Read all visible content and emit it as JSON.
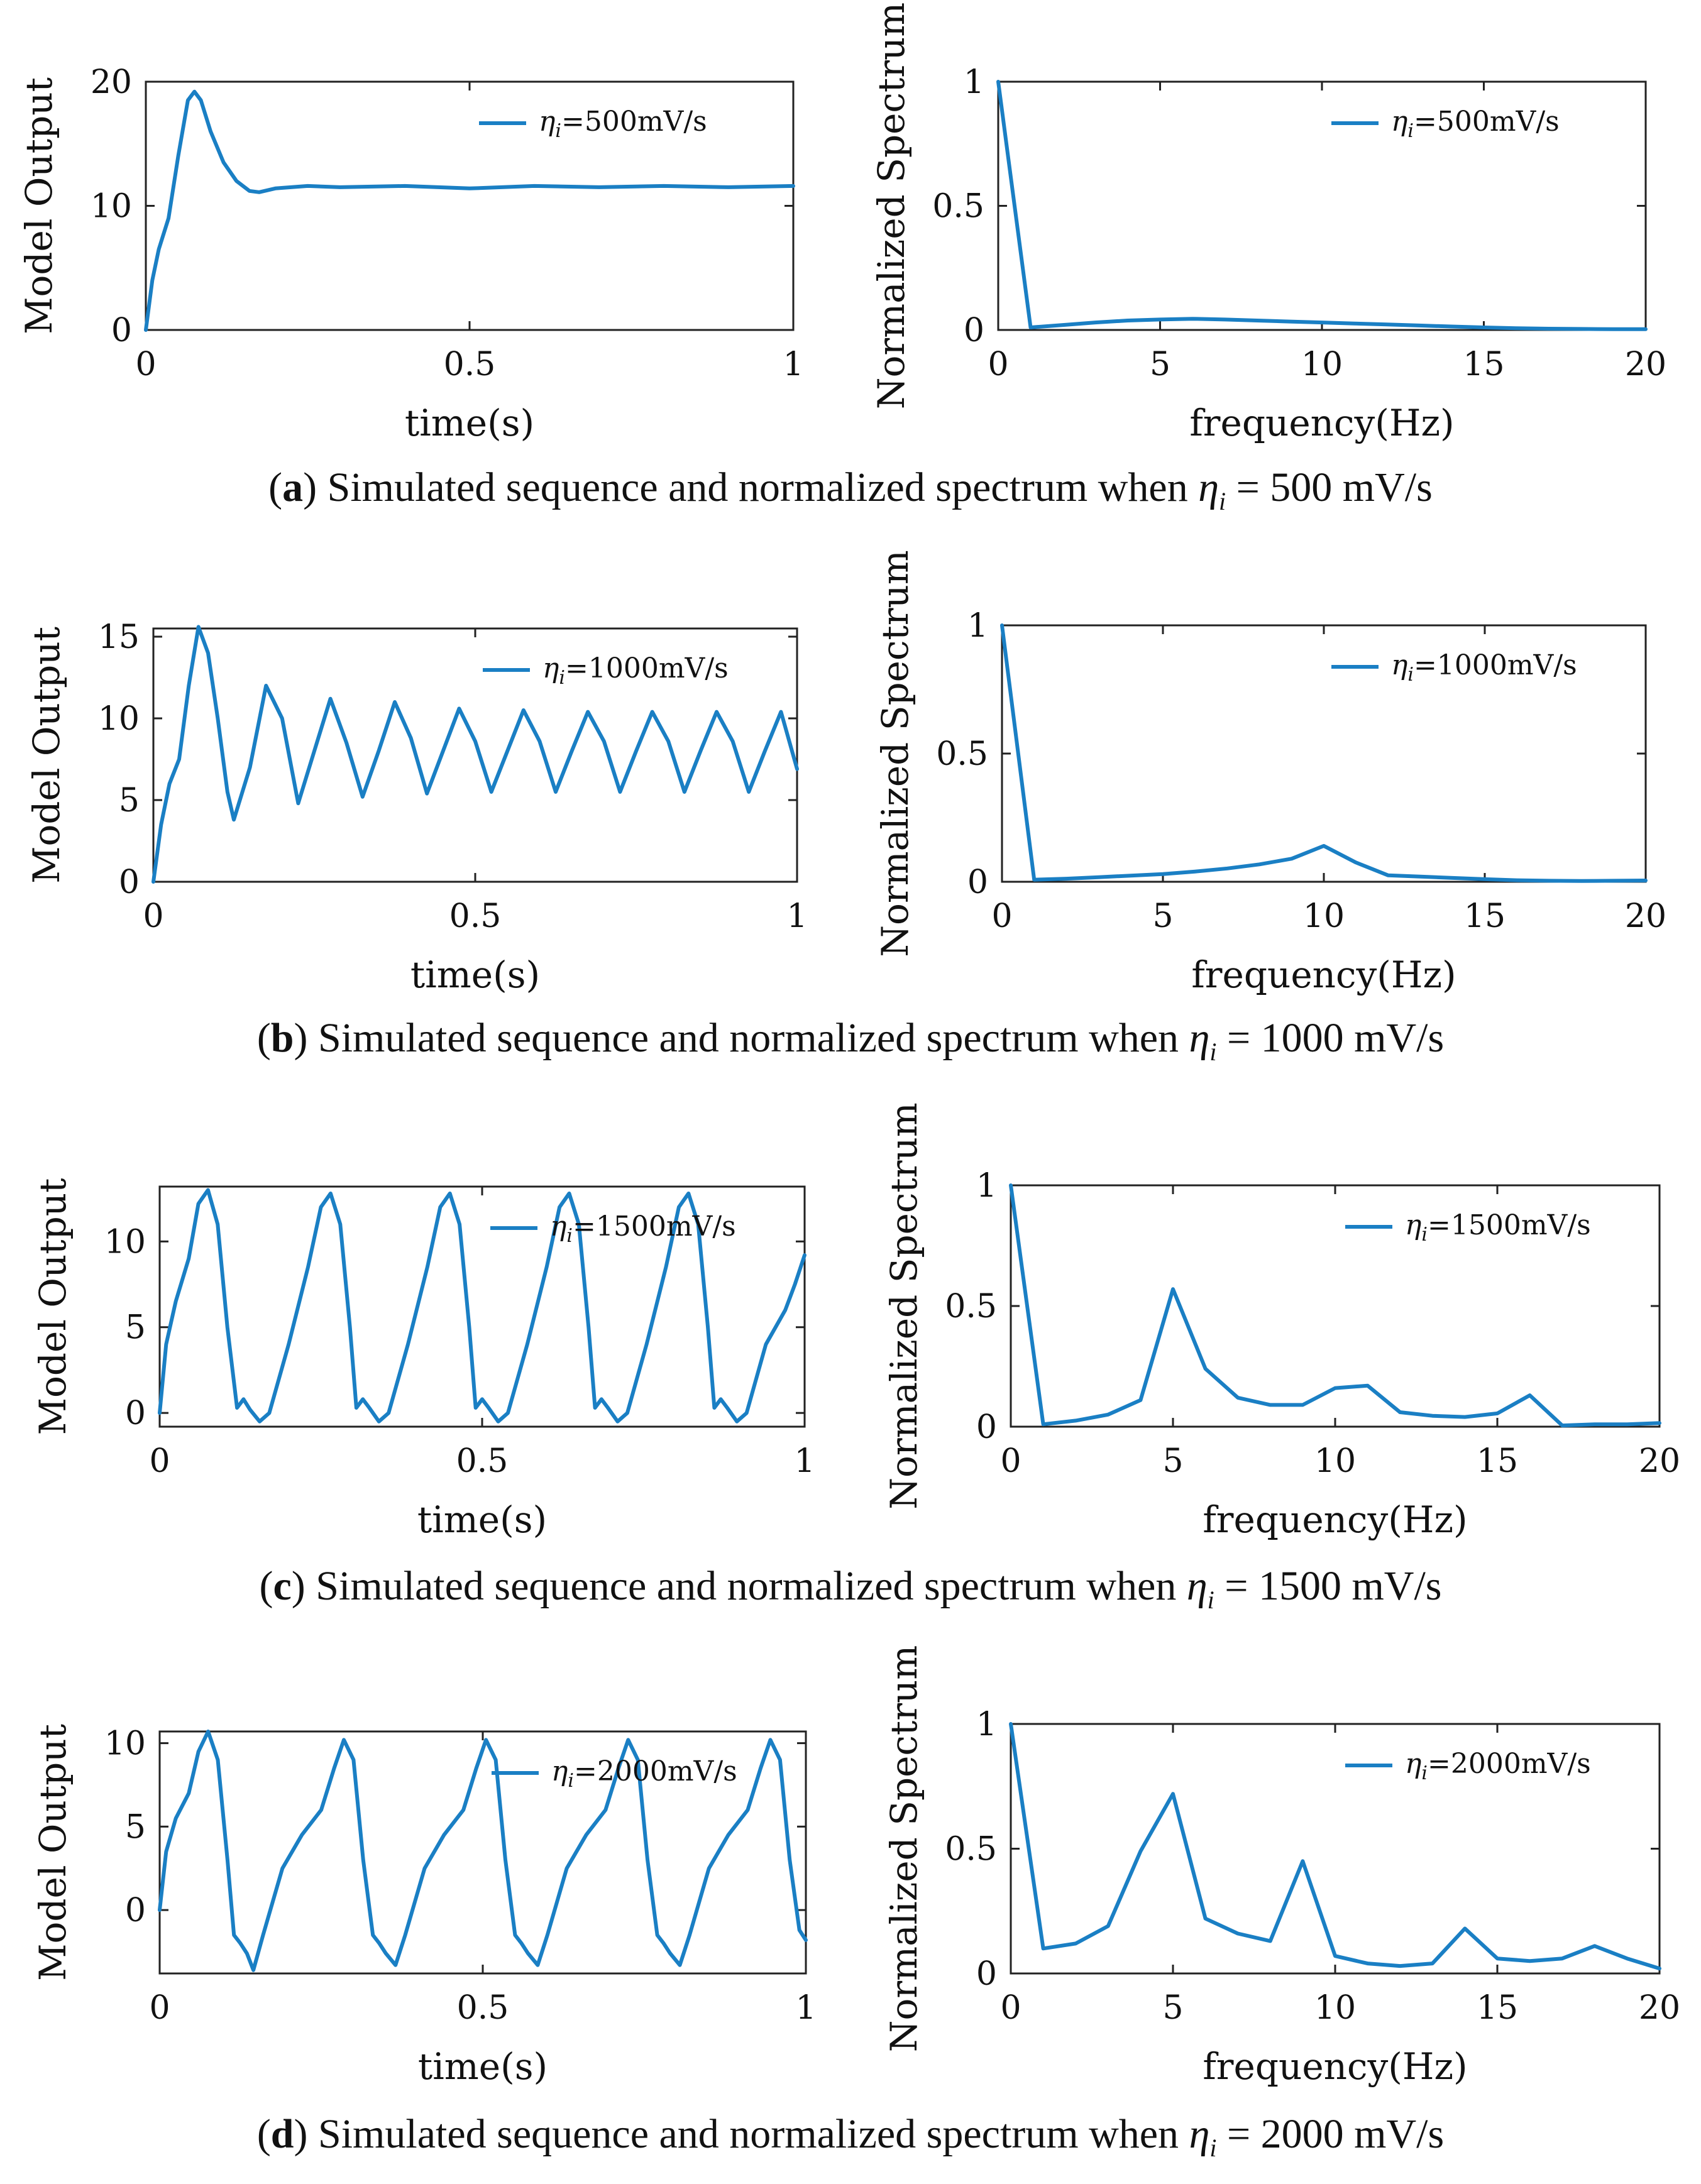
{
  "figure": {
    "captions": [
      {
        "letter": "a",
        "text": "Simulated sequence and normalized spectrum when",
        "eta": "η",
        "sub": "i",
        "value": "= 500 mV/s"
      },
      {
        "letter": "b",
        "text": "Simulated sequence and normalized spectrum when",
        "eta": "η",
        "sub": "i",
        "value": "= 1000 mV/s"
      },
      {
        "letter": "c",
        "text": "Simulated sequence and normalized spectrum when",
        "eta": "η",
        "sub": "i",
        "value": "= 1500 mV/s"
      },
      {
        "letter": "d",
        "text": "Simulated sequence and normalized spectrum when",
        "eta": "η",
        "sub": "i",
        "value": "= 2000 mV/s"
      }
    ]
  },
  "chart_data": [
    {
      "id": "a-time",
      "type": "line",
      "color": "#1a7fc4",
      "xlabel": "time(s)",
      "ylabel": "Model Output",
      "xlim": [
        0,
        1
      ],
      "ylim": [
        0,
        20
      ],
      "xticks": [
        0,
        0.5,
        1
      ],
      "xticklabels": [
        "0",
        "0.5",
        "1"
      ],
      "yticks": [
        0,
        10,
        20
      ],
      "yticklabels": [
        "0",
        "10",
        "20"
      ],
      "legend": {
        "prefix": "η",
        "sub": "i",
        "text": "=500mV/s",
        "position": "top-right"
      },
      "series": [
        {
          "name": "ηi=500mV/s",
          "x": [
            0,
            0.01,
            0.02,
            0.035,
            0.05,
            0.065,
            0.075,
            0.085,
            0.1,
            0.12,
            0.14,
            0.16,
            0.175,
            0.2,
            0.25,
            0.3,
            0.4,
            0.5,
            0.6,
            0.7,
            0.8,
            0.9,
            1.0
          ],
          "y": [
            0,
            4,
            6.5,
            9,
            14,
            18.5,
            19.2,
            18.5,
            16,
            13.5,
            12,
            11.2,
            11.1,
            11.4,
            11.6,
            11.5,
            11.6,
            11.4,
            11.6,
            11.5,
            11.6,
            11.5,
            11.6
          ]
        }
      ]
    },
    {
      "id": "a-freq",
      "type": "line",
      "color": "#1a7fc4",
      "xlabel": "frequency(Hz)",
      "ylabel": "Normalized Spectrum",
      "xlim": [
        0,
        20
      ],
      "ylim": [
        0,
        1
      ],
      "xticks": [
        0,
        5,
        10,
        15,
        20
      ],
      "xticklabels": [
        "0",
        "5",
        "10",
        "15",
        "20"
      ],
      "yticks": [
        0,
        0.5,
        1
      ],
      "yticklabels": [
        "0",
        "0.5",
        "1"
      ],
      "legend": {
        "prefix": "η",
        "sub": "i",
        "text": "=500mV/s",
        "position": "top-right"
      },
      "series": [
        {
          "name": "ηi=500mV/s",
          "x": [
            0,
            1,
            2,
            3,
            4,
            5,
            6,
            7,
            8,
            9,
            10,
            11,
            12,
            13,
            14,
            15,
            16,
            17,
            18,
            19,
            20
          ],
          "y": [
            1,
            0.01,
            0.02,
            0.03,
            0.038,
            0.042,
            0.045,
            0.042,
            0.038,
            0.034,
            0.03,
            0.026,
            0.022,
            0.018,
            0.014,
            0.01,
            0.007,
            0.005,
            0.004,
            0.003,
            0.003
          ]
        }
      ]
    },
    {
      "id": "b-time",
      "type": "line",
      "color": "#1a7fc4",
      "xlabel": "time(s)",
      "ylabel": "Model Output",
      "xlim": [
        0,
        1
      ],
      "ylim": [
        0,
        15.5
      ],
      "xticks": [
        0,
        0.5,
        1
      ],
      "xticklabels": [
        "0",
        "0.5",
        "1"
      ],
      "yticks": [
        0,
        5,
        10,
        15
      ],
      "yticklabels": [
        "0",
        "5",
        "10",
        "15"
      ],
      "legend": {
        "prefix": "η",
        "sub": "i",
        "text": "=1000mV/s",
        "position": "top-right"
      },
      "series": [
        {
          "name": "ηi=1000mV/s",
          "x": [
            0,
            0.012,
            0.025,
            0.04,
            0.055,
            0.07,
            0.085,
            0.1,
            0.115,
            0.125,
            0.15,
            0.175,
            0.2,
            0.225,
            0.25,
            0.275,
            0.3,
            0.325,
            0.35,
            0.375,
            0.4,
            0.425,
            0.45,
            0.475,
            0.5,
            0.525,
            0.55,
            0.575,
            0.6,
            0.625,
            0.65,
            0.675,
            0.7,
            0.725,
            0.75,
            0.775,
            0.8,
            0.825,
            0.85,
            0.875,
            0.9,
            0.925,
            0.95,
            0.975,
            1.0
          ],
          "y": [
            0,
            3.5,
            6,
            7.5,
            12,
            15.6,
            14,
            10,
            5.5,
            3.8,
            7,
            12,
            10,
            4.8,
            8,
            11.2,
            8.5,
            5.2,
            8,
            11,
            8.8,
            5.4,
            8,
            10.6,
            8.6,
            5.5,
            8,
            10.5,
            8.6,
            5.5,
            8,
            10.4,
            8.6,
            5.5,
            8,
            10.4,
            8.6,
            5.5,
            8,
            10.4,
            8.6,
            5.5,
            8,
            10.4,
            6.9
          ]
        }
      ]
    },
    {
      "id": "b-freq",
      "type": "line",
      "color": "#1a7fc4",
      "xlabel": "frequency(Hz)",
      "ylabel": "Normalized Spectrum",
      "xlim": [
        0,
        20
      ],
      "ylim": [
        0,
        1
      ],
      "xticks": [
        0,
        5,
        10,
        15,
        20
      ],
      "xticklabels": [
        "0",
        "5",
        "10",
        "15",
        "20"
      ],
      "yticks": [
        0,
        0.5,
        1
      ],
      "yticklabels": [
        "0",
        "0.5",
        "1"
      ],
      "legend": {
        "prefix": "η",
        "sub": "i",
        "text": "=1000mV/s",
        "position": "top-right"
      },
      "series": [
        {
          "name": "ηi=1000mV/s",
          "x": [
            0,
            1,
            2,
            3,
            4,
            5,
            6,
            7,
            8,
            9,
            10,
            11,
            12,
            13,
            14,
            15,
            16,
            17,
            18,
            19,
            20
          ],
          "y": [
            1,
            0.008,
            0.012,
            0.018,
            0.024,
            0.03,
            0.04,
            0.052,
            0.068,
            0.09,
            0.14,
            0.075,
            0.025,
            0.02,
            0.015,
            0.01,
            0.006,
            0.004,
            0.003,
            0.004,
            0.005
          ]
        }
      ]
    },
    {
      "id": "c-time",
      "type": "line",
      "color": "#1a7fc4",
      "xlabel": "time(s)",
      "ylabel": "Model Output",
      "xlim": [
        0,
        1
      ],
      "ylim": [
        -0.8,
        13.2
      ],
      "xticks": [
        0,
        0.5,
        1
      ],
      "xticklabels": [
        "0",
        "0.5",
        "1"
      ],
      "yticks": [
        0,
        5,
        10
      ],
      "yticklabels": [
        "0",
        "5",
        "10"
      ],
      "legend": {
        "prefix": "η",
        "sub": "i",
        "text": "=1500mV/s",
        "position": "top-right"
      },
      "series": [
        {
          "name": "ηi=1500mV/s",
          "x": [
            0,
            0.01,
            0.025,
            0.045,
            0.06,
            0.075,
            0.09,
            0.105,
            0.12,
            0.13,
            0.14,
            0.155,
            0.17,
            0.2,
            0.23,
            0.25,
            0.265,
            0.28,
            0.295,
            0.305,
            0.315,
            0.325,
            0.34,
            0.355,
            0.385,
            0.415,
            0.435,
            0.45,
            0.465,
            0.48,
            0.49,
            0.5,
            0.51,
            0.525,
            0.54,
            0.57,
            0.6,
            0.62,
            0.635,
            0.65,
            0.665,
            0.675,
            0.685,
            0.695,
            0.71,
            0.725,
            0.755,
            0.785,
            0.805,
            0.82,
            0.835,
            0.85,
            0.86,
            0.87,
            0.88,
            0.895,
            0.91,
            0.94,
            0.97,
            0.985,
            1.0
          ],
          "y": [
            0,
            4,
            6.5,
            9,
            12.2,
            13,
            11,
            5,
            0.3,
            0.8,
            0.2,
            -0.5,
            0,
            4,
            8.5,
            12,
            12.8,
            11,
            5,
            0.3,
            0.8,
            0.3,
            -0.5,
            0,
            4,
            8.5,
            12,
            12.8,
            11,
            5,
            0.3,
            0.8,
            0.3,
            -0.5,
            0,
            4,
            8.5,
            12,
            12.8,
            11,
            5,
            0.3,
            0.8,
            0.3,
            -0.5,
            0,
            4,
            8.5,
            12,
            12.8,
            11,
            5,
            0.3,
            0.8,
            0.3,
            -0.5,
            0,
            4,
            6,
            7.5,
            9.2
          ]
        }
      ]
    },
    {
      "id": "c-freq",
      "type": "line",
      "color": "#1a7fc4",
      "xlabel": "frequency(Hz)",
      "ylabel": "Normalized Spectrum",
      "xlim": [
        0,
        20
      ],
      "ylim": [
        0,
        1
      ],
      "xticks": [
        0,
        5,
        10,
        15,
        20
      ],
      "xticklabels": [
        "0",
        "5",
        "10",
        "15",
        "20"
      ],
      "yticks": [
        0,
        0.5,
        1
      ],
      "yticklabels": [
        "0",
        "0.5",
        "1"
      ],
      "legend": {
        "prefix": "η",
        "sub": "i",
        "text": "=1500mV/s",
        "position": "top-right"
      },
      "series": [
        {
          "name": "ηi=1500mV/s",
          "x": [
            0,
            1,
            2,
            3,
            4,
            5,
            6,
            7,
            8,
            9,
            10,
            11,
            12,
            13,
            14,
            15,
            16,
            17,
            18,
            19,
            20
          ],
          "y": [
            1,
            0.01,
            0.025,
            0.05,
            0.11,
            0.57,
            0.24,
            0.12,
            0.09,
            0.09,
            0.16,
            0.17,
            0.06,
            0.045,
            0.04,
            0.055,
            0.13,
            0.005,
            0.01,
            0.01,
            0.015
          ]
        }
      ]
    },
    {
      "id": "d-time",
      "type": "line",
      "color": "#1a7fc4",
      "xlabel": "time(s)",
      "ylabel": "Model Output",
      "xlim": [
        0,
        1
      ],
      "ylim": [
        -3.8,
        10.7
      ],
      "xticks": [
        0,
        0.5,
        1
      ],
      "xticklabels": [
        "0",
        "0.5",
        "1"
      ],
      "yticks": [
        0,
        5,
        10
      ],
      "yticklabels": [
        "0",
        "5",
        "10"
      ],
      "legend": {
        "prefix": "η",
        "sub": "i",
        "text": "=2000mV/s",
        "position": "top-right"
      },
      "series": [
        {
          "name": "ηi=2000mV/s",
          "x": [
            0,
            0.01,
            0.025,
            0.045,
            0.06,
            0.075,
            0.09,
            0.105,
            0.115,
            0.125,
            0.135,
            0.145,
            0.16,
            0.19,
            0.22,
            0.25,
            0.27,
            0.285,
            0.3,
            0.315,
            0.33,
            0.34,
            0.35,
            0.365,
            0.38,
            0.41,
            0.44,
            0.47,
            0.49,
            0.505,
            0.52,
            0.535,
            0.55,
            0.56,
            0.57,
            0.585,
            0.6,
            0.63,
            0.66,
            0.69,
            0.71,
            0.725,
            0.74,
            0.755,
            0.77,
            0.78,
            0.79,
            0.805,
            0.82,
            0.85,
            0.88,
            0.91,
            0.93,
            0.945,
            0.96,
            0.975,
            0.99,
            1.0
          ],
          "y": [
            0,
            3.5,
            5.5,
            7,
            9.5,
            10.7,
            9,
            3,
            -1.5,
            -2,
            -2.6,
            -3.6,
            -1.5,
            2.5,
            4.5,
            6,
            8.5,
            10.2,
            9,
            3,
            -1.5,
            -2,
            -2.6,
            -3.3,
            -1.5,
            2.5,
            4.5,
            6,
            8.5,
            10.2,
            9,
            3,
            -1.5,
            -2,
            -2.6,
            -3.3,
            -1.5,
            2.5,
            4.5,
            6,
            8.5,
            10.2,
            9,
            3,
            -1.5,
            -2,
            -2.6,
            -3.3,
            -1.5,
            2.5,
            4.5,
            6,
            8.5,
            10.2,
            9,
            3,
            -1.2,
            -1.8
          ]
        }
      ]
    },
    {
      "id": "d-freq",
      "type": "line",
      "color": "#1a7fc4",
      "xlabel": "frequency(Hz)",
      "ylabel": "Normalized Spectrum",
      "xlim": [
        0,
        20
      ],
      "ylim": [
        0,
        1
      ],
      "xticks": [
        0,
        5,
        10,
        15,
        20
      ],
      "xticklabels": [
        "0",
        "5",
        "10",
        "15",
        "20"
      ],
      "yticks": [
        0,
        0.5,
        1
      ],
      "yticklabels": [
        "0",
        "0.5",
        "1"
      ],
      "legend": {
        "prefix": "η",
        "sub": "i",
        "text": "=2000mV/s",
        "position": "top-right"
      },
      "series": [
        {
          "name": "ηi=2000mV/s",
          "x": [
            0,
            1,
            2,
            3,
            4,
            5,
            6,
            7,
            8,
            9,
            10,
            11,
            12,
            13,
            14,
            15,
            16,
            17,
            18,
            19,
            20
          ],
          "y": [
            1,
            0.1,
            0.12,
            0.19,
            0.49,
            0.72,
            0.22,
            0.16,
            0.13,
            0.45,
            0.07,
            0.04,
            0.03,
            0.04,
            0.18,
            0.06,
            0.05,
            0.06,
            0.11,
            0.06,
            0.02
          ]
        }
      ]
    }
  ]
}
